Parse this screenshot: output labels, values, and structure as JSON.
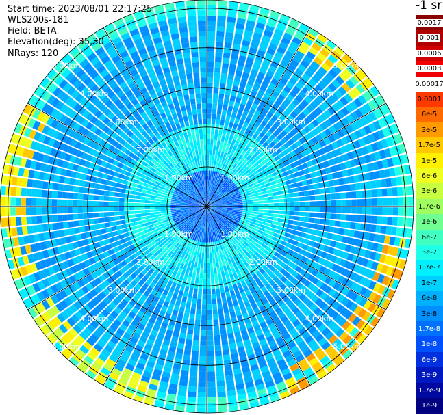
{
  "info": {
    "start_time": "Start time: 2023/08/01 22:17:25",
    "instrument": "WLS200s-181",
    "field": "Field: BETA",
    "elevation": "Elevation(deg): 35.30",
    "nrays": "NRays: 120"
  },
  "colorbar": {
    "unit": "-1 sr",
    "levels": [
      {
        "label": "0.0017",
        "color": "#8b0000"
      },
      {
        "label": "0.001",
        "color": "#b00000"
      },
      {
        "label": "0.0006",
        "color": "#d00000"
      },
      {
        "label": "0.0003",
        "color": "#f00000"
      },
      {
        "label": "0.00017",
        "color": "#ffffff"
      },
      {
        "label": "0.0001",
        "color": "#ff3a00"
      },
      {
        "label": "6e-5",
        "color": "#ff6a00"
      },
      {
        "label": "3e-5",
        "color": "#ff9a00"
      },
      {
        "label": "1.7e-5",
        "color": "#ffc800"
      },
      {
        "label": "1e-5",
        "color": "#fff000"
      },
      {
        "label": "6e-6",
        "color": "#f0ff20"
      },
      {
        "label": "3e-6",
        "color": "#c8ff40"
      },
      {
        "label": "1.7e-6",
        "color": "#a0ff60"
      },
      {
        "label": "1e-6",
        "color": "#70ff90"
      },
      {
        "label": "6e-7",
        "color": "#40ffc0"
      },
      {
        "label": "3e-7",
        "color": "#20ffe8"
      },
      {
        "label": "1.7e-7",
        "color": "#00f0ff"
      },
      {
        "label": "1e-7",
        "color": "#00d0ff"
      },
      {
        "label": "6e-8",
        "color": "#00b0ff"
      },
      {
        "label": "3e-8",
        "color": "#0090ff"
      },
      {
        "label": "1.7e-8",
        "color": "#0070ff"
      },
      {
        "label": "1e-8",
        "color": "#0050ff"
      },
      {
        "label": "6e-9",
        "color": "#0030e0"
      },
      {
        "label": "3e-9",
        "color": "#0018c0"
      },
      {
        "label": "1.7e-9",
        "color": "#0008a0"
      },
      {
        "label": "1e-9",
        "color": "#000080"
      }
    ]
  },
  "chart_data": {
    "type": "heatmap",
    "projection": "polar-ppi",
    "n_rays": 120,
    "max_range_km": 5.2,
    "range_rings_km": [
      1.0,
      2.0,
      3.0,
      4.0,
      5.0
    ],
    "ring_labels": [
      "1.00km",
      "2.00km",
      "3.00km",
      "4.00km",
      "5.00km"
    ],
    "spoke_angles_deg": [
      0,
      30,
      60,
      90,
      120,
      150,
      180,
      210,
      240,
      270,
      300,
      330
    ],
    "dominant_level_by_range": [
      {
        "range_km": [
          0.0,
          0.9
        ],
        "level": "1.7e-8"
      },
      {
        "range_km": [
          0.9,
          2.1
        ],
        "level": "1.7e-7"
      },
      {
        "range_km": [
          2.1,
          4.8
        ],
        "level": "6e-8"
      },
      {
        "range_km": [
          4.8,
          5.2
        ],
        "level": "3e-7"
      }
    ],
    "high_signal_arcs": [
      {
        "azimuth_deg": [
          250,
          300
        ],
        "range_km": [
          4.6,
          5.2
        ],
        "level": "1e-5"
      },
      {
        "azimuth_deg": [
          30,
          55
        ],
        "range_km": [
          4.6,
          5.2
        ],
        "level": "1e-5"
      },
      {
        "azimuth_deg": [
          100,
          160
        ],
        "range_km": [
          4.6,
          5.2
        ],
        "level": "1.7e-5"
      },
      {
        "azimuth_deg": [
          195,
          240
        ],
        "range_km": [
          4.6,
          5.2
        ],
        "level": "6e-6"
      }
    ]
  }
}
